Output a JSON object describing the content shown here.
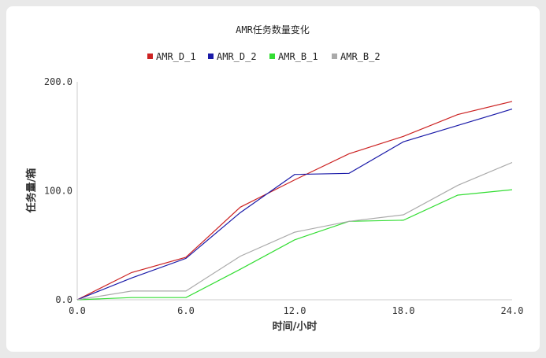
{
  "chart_data": {
    "type": "line",
    "title": "AMR任务数量变化",
    "xlabel": "时间/小时",
    "ylabel": "任务量/箱",
    "xlim": [
      0,
      24
    ],
    "ylim": [
      0,
      200
    ],
    "xticks": [
      "0.0",
      "6.0",
      "12.0",
      "18.0",
      "24.0"
    ],
    "yticks": [
      "0.0",
      "100.0",
      "200.0"
    ],
    "grid": false,
    "legend_position": "top-center",
    "series": [
      {
        "name": "AMR_D_1",
        "color": "#cc2222",
        "x": [
          0,
          3,
          6,
          9,
          12,
          15,
          18,
          21,
          24
        ],
        "y": [
          0,
          25,
          39,
          85,
          110,
          134,
          150,
          170,
          182
        ]
      },
      {
        "name": "AMR_D_2",
        "color": "#1a1aa8",
        "x": [
          0,
          3,
          6,
          9,
          12,
          15,
          18,
          21,
          24
        ],
        "y": [
          0,
          20,
          38,
          80,
          115,
          116,
          145,
          160,
          175
        ]
      },
      {
        "name": "AMR_B_1",
        "color": "#33dd33",
        "x": [
          0,
          3,
          6,
          9,
          12,
          15,
          18,
          21,
          24
        ],
        "y": [
          0,
          2,
          2,
          28,
          55,
          72,
          73,
          96,
          101
        ]
      },
      {
        "name": "AMR_B_2",
        "color": "#aaaaaa",
        "x": [
          0,
          3,
          6,
          9,
          12,
          15,
          18,
          21,
          24
        ],
        "y": [
          0,
          8,
          8,
          40,
          62,
          72,
          78,
          105,
          126
        ]
      }
    ]
  }
}
